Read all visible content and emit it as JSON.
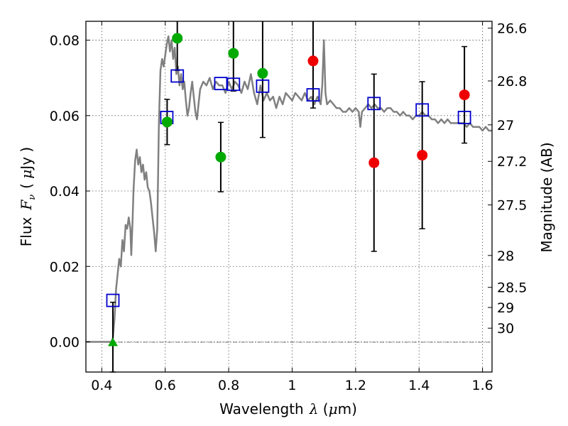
{
  "chart_data": {
    "type": "scatter",
    "xlabel_text": "Wavelength",
    "xlabel_symbol": "λ",
    "xlabel_unit_open": " (",
    "xlabel_unit_mu": "μ",
    "xlabel_unit_rest": "m)",
    "ylabel_text": "Flux",
    "ylabel_symbol": "F",
    "ylabel_subscript": "ν",
    "ylabel_unit_open": "( ",
    "ylabel_unit_mu": "μ",
    "ylabel_unit_rest": "Jy )",
    "y2label": "Magnitude (AB)",
    "xlim": [
      0.35,
      1.63
    ],
    "ylim": [
      -0.008,
      0.085
    ],
    "grid": true,
    "x_ticks": [
      {
        "v": 0.4,
        "label": "0.4"
      },
      {
        "v": 0.6,
        "label": "0.6"
      },
      {
        "v": 0.8,
        "label": "0.8"
      },
      {
        "v": 1.0,
        "label": "1"
      },
      {
        "v": 1.2,
        "label": "1.2"
      },
      {
        "v": 1.4,
        "label": "1.4"
      },
      {
        "v": 1.6,
        "label": "1.6"
      }
    ],
    "y_ticks": [
      {
        "v": 0.0,
        "label": "0.00"
      },
      {
        "v": 0.02,
        "label": "0.02"
      },
      {
        "v": 0.04,
        "label": "0.04"
      },
      {
        "v": 0.06,
        "label": "0.06"
      },
      {
        "v": 0.08,
        "label": "0.08"
      }
    ],
    "mag_ticks": [
      {
        "v": 26.6,
        "label": "26.6"
      },
      {
        "v": 26.8,
        "label": "26.8"
      },
      {
        "v": 27.0,
        "label": "27"
      },
      {
        "v": 27.2,
        "label": "27.2"
      },
      {
        "v": 27.5,
        "label": "27.5"
      },
      {
        "v": 28.0,
        "label": "28"
      },
      {
        "v": 28.5,
        "label": "28.5"
      },
      {
        "v": 29.0,
        "label": "29"
      },
      {
        "v": 30.0,
        "label": "30"
      }
    ],
    "model_sed": {
      "color": "#808080",
      "points": [
        [
          0.35,
          0.0
        ],
        [
          0.43,
          0.0
        ],
        [
          0.435,
          0.001
        ],
        [
          0.44,
          0.006
        ],
        [
          0.445,
          0.014
        ],
        [
          0.45,
          0.018
        ],
        [
          0.455,
          0.022
        ],
        [
          0.46,
          0.02
        ],
        [
          0.465,
          0.027
        ],
        [
          0.47,
          0.024
        ],
        [
          0.475,
          0.031
        ],
        [
          0.48,
          0.03
        ],
        [
          0.485,
          0.033
        ],
        [
          0.49,
          0.03
        ],
        [
          0.493,
          0.023
        ],
        [
          0.497,
          0.032
        ],
        [
          0.5,
          0.04
        ],
        [
          0.505,
          0.048
        ],
        [
          0.51,
          0.051
        ],
        [
          0.515,
          0.047
        ],
        [
          0.52,
          0.049
        ],
        [
          0.525,
          0.045
        ],
        [
          0.53,
          0.047
        ],
        [
          0.535,
          0.043
        ],
        [
          0.54,
          0.045
        ],
        [
          0.545,
          0.041
        ],
        [
          0.55,
          0.04
        ],
        [
          0.555,
          0.037
        ],
        [
          0.56,
          0.033
        ],
        [
          0.565,
          0.029
        ],
        [
          0.57,
          0.024
        ],
        [
          0.575,
          0.03
        ],
        [
          0.58,
          0.058
        ],
        [
          0.585,
          0.072
        ],
        [
          0.59,
          0.075
        ],
        [
          0.595,
          0.073
        ],
        [
          0.6,
          0.076
        ],
        [
          0.605,
          0.079
        ],
        [
          0.61,
          0.081
        ],
        [
          0.615,
          0.077
        ],
        [
          0.62,
          0.08
        ],
        [
          0.625,
          0.075
        ],
        [
          0.63,
          0.078
        ],
        [
          0.635,
          0.071
        ],
        [
          0.64,
          0.073
        ],
        [
          0.645,
          0.068
        ],
        [
          0.65,
          0.071
        ],
        [
          0.655,
          0.067
        ],
        [
          0.66,
          0.069
        ],
        [
          0.665,
          0.064
        ],
        [
          0.67,
          0.06
        ],
        [
          0.675,
          0.062
        ],
        [
          0.68,
          0.066
        ],
        [
          0.685,
          0.069
        ],
        [
          0.69,
          0.065
        ],
        [
          0.695,
          0.061
        ],
        [
          0.7,
          0.059
        ],
        [
          0.705,
          0.063
        ],
        [
          0.71,
          0.067
        ],
        [
          0.72,
          0.069
        ],
        [
          0.73,
          0.068
        ],
        [
          0.74,
          0.07
        ],
        [
          0.75,
          0.067
        ],
        [
          0.76,
          0.069
        ],
        [
          0.77,
          0.068
        ],
        [
          0.78,
          0.068
        ],
        [
          0.79,
          0.066
        ],
        [
          0.8,
          0.069
        ],
        [
          0.81,
          0.067
        ],
        [
          0.82,
          0.069
        ],
        [
          0.83,
          0.068
        ],
        [
          0.84,
          0.066
        ],
        [
          0.85,
          0.069
        ],
        [
          0.86,
          0.067
        ],
        [
          0.87,
          0.071
        ],
        [
          0.88,
          0.066
        ],
        [
          0.89,
          0.063
        ],
        [
          0.9,
          0.068
        ],
        [
          0.91,
          0.064
        ],
        [
          0.92,
          0.066
        ],
        [
          0.93,
          0.064
        ],
        [
          0.94,
          0.065
        ],
        [
          0.95,
          0.062
        ],
        [
          0.96,
          0.065
        ],
        [
          0.97,
          0.063
        ],
        [
          0.98,
          0.066
        ],
        [
          0.99,
          0.065
        ],
        [
          1.0,
          0.064
        ],
        [
          1.01,
          0.066
        ],
        [
          1.02,
          0.065
        ],
        [
          1.03,
          0.064
        ],
        [
          1.04,
          0.066
        ],
        [
          1.05,
          0.064
        ],
        [
          1.06,
          0.065
        ],
        [
          1.07,
          0.063
        ],
        [
          1.08,
          0.065
        ],
        [
          1.09,
          0.063
        ],
        [
          1.095,
          0.068
        ],
        [
          1.1,
          0.08
        ],
        [
          1.105,
          0.066
        ],
        [
          1.11,
          0.063
        ],
        [
          1.12,
          0.064
        ],
        [
          1.13,
          0.063
        ],
        [
          1.14,
          0.062
        ],
        [
          1.15,
          0.062
        ],
        [
          1.16,
          0.061
        ],
        [
          1.17,
          0.061
        ],
        [
          1.18,
          0.062
        ],
        [
          1.19,
          0.061
        ],
        [
          1.2,
          0.062
        ],
        [
          1.21,
          0.061
        ],
        [
          1.215,
          0.057
        ],
        [
          1.22,
          0.061
        ],
        [
          1.23,
          0.062
        ],
        [
          1.24,
          0.063
        ],
        [
          1.25,
          0.062
        ],
        [
          1.26,
          0.063
        ],
        [
          1.27,
          0.062
        ],
        [
          1.28,
          0.062
        ],
        [
          1.29,
          0.061
        ],
        [
          1.3,
          0.062
        ],
        [
          1.31,
          0.062
        ],
        [
          1.32,
          0.061
        ],
        [
          1.33,
          0.061
        ],
        [
          1.34,
          0.06
        ],
        [
          1.35,
          0.061
        ],
        [
          1.36,
          0.06
        ],
        [
          1.37,
          0.06
        ],
        [
          1.38,
          0.059
        ],
        [
          1.39,
          0.06
        ],
        [
          1.4,
          0.06
        ],
        [
          1.41,
          0.061
        ],
        [
          1.42,
          0.06
        ],
        [
          1.43,
          0.06
        ],
        [
          1.44,
          0.059
        ],
        [
          1.45,
          0.059
        ],
        [
          1.46,
          0.058
        ],
        [
          1.47,
          0.059
        ],
        [
          1.48,
          0.058
        ],
        [
          1.49,
          0.059
        ],
        [
          1.5,
          0.058
        ],
        [
          1.51,
          0.058
        ],
        [
          1.52,
          0.058
        ],
        [
          1.53,
          0.058
        ],
        [
          1.54,
          0.058
        ],
        [
          1.55,
          0.057
        ],
        [
          1.56,
          0.058
        ],
        [
          1.57,
          0.057
        ],
        [
          1.58,
          0.057
        ],
        [
          1.59,
          0.057
        ],
        [
          1.6,
          0.056
        ],
        [
          1.61,
          0.057
        ],
        [
          1.62,
          0.056
        ],
        [
          1.63,
          0.056
        ]
      ]
    },
    "model_photometry": {
      "color": "#0000cc",
      "points": [
        [
          0.435,
          0.011
        ],
        [
          0.605,
          0.0595
        ],
        [
          0.638,
          0.0705
        ],
        [
          0.775,
          0.0685
        ],
        [
          0.815,
          0.0683
        ],
        [
          0.907,
          0.0678
        ],
        [
          1.066,
          0.0655
        ],
        [
          1.258,
          0.0632
        ],
        [
          1.41,
          0.0615
        ],
        [
          1.543,
          0.0595
        ]
      ]
    },
    "observed_detections": {
      "color": "#00aa00",
      "points": [
        {
          "x": 0.606,
          "y": 0.0583,
          "err": 0.006
        },
        {
          "x": 0.638,
          "y": 0.0805,
          "err": 0.0085
        },
        {
          "x": 0.775,
          "y": 0.049,
          "err": 0.0092
        },
        {
          "x": 0.815,
          "y": 0.0765,
          "err": 0.01
        },
        {
          "x": 0.907,
          "y": 0.0712,
          "err": 0.017
        }
      ]
    },
    "observed_lowsn": {
      "color": "#ee0000",
      "points": [
        {
          "x": 1.066,
          "y": 0.0745,
          "err": 0.0125
        },
        {
          "x": 1.258,
          "y": 0.0475,
          "err": 0.0235
        },
        {
          "x": 1.41,
          "y": 0.0495,
          "err": 0.0195
        },
        {
          "x": 1.543,
          "y": 0.0655,
          "err": 0.0128
        }
      ]
    },
    "upper_limit": {
      "color": "#00aa00",
      "x": 0.435,
      "y": 0.0,
      "err": 0.0105
    }
  }
}
